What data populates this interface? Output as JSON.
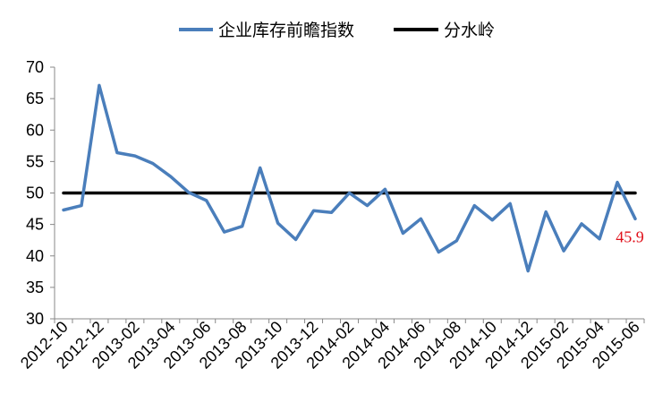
{
  "chart_data": {
    "type": "line",
    "title": "",
    "xlabel": "",
    "ylabel": "",
    "ylim": [
      30,
      70
    ],
    "yticks": [
      "30",
      "35",
      "40",
      "45",
      "50",
      "55",
      "60",
      "65",
      "70"
    ],
    "xtick_labels": [
      "2012-10",
      "2012-12",
      "2013-02",
      "2013-04",
      "2013-06",
      "2013-08",
      "2013-10",
      "2013-12",
      "2014-02",
      "2014-04",
      "2014-06",
      "2014-08",
      "2014-10",
      "2014-12",
      "2015-02",
      "2015-04",
      "2015-06"
    ],
    "x": [
      "2012-10",
      "2012-11",
      "2012-12",
      "2013-01",
      "2013-02",
      "2013-03",
      "2013-04",
      "2013-05",
      "2013-06",
      "2013-07",
      "2013-08",
      "2013-09",
      "2013-10",
      "2013-11",
      "2013-12",
      "2014-01",
      "2014-02",
      "2014-03",
      "2014-04",
      "2014-05",
      "2014-06",
      "2014-07",
      "2014-08",
      "2014-09",
      "2014-10",
      "2014-11",
      "2014-12",
      "2015-01",
      "2015-02",
      "2015-03",
      "2015-04",
      "2015-05",
      "2015-06"
    ],
    "series": [
      {
        "name": "企业库存前瞻指数",
        "color": "#4a7ebb",
        "values": [
          47.3,
          48.0,
          67.1,
          56.4,
          55.9,
          54.7,
          52.6,
          50.1,
          48.8,
          43.8,
          44.7,
          54.0,
          45.2,
          42.6,
          47.2,
          46.9,
          50.0,
          48.0,
          50.6,
          43.6,
          45.9,
          40.6,
          42.4,
          48.0,
          45.7,
          48.3,
          37.6,
          47.0,
          40.8,
          45.1,
          42.7,
          51.7,
          45.9
        ]
      },
      {
        "name": "分水岭",
        "color": "#000000",
        "values": [
          50,
          50,
          50,
          50,
          50,
          50,
          50,
          50,
          50,
          50,
          50,
          50,
          50,
          50,
          50,
          50,
          50,
          50,
          50,
          50,
          50,
          50,
          50,
          50,
          50,
          50,
          50,
          50,
          50,
          50,
          50,
          50,
          50
        ]
      }
    ],
    "annotations": [
      {
        "text": "45.9",
        "x": "2015-06",
        "y": 45.9,
        "color": "#e0101a"
      }
    ],
    "legend": {
      "position": "top"
    },
    "grid": false
  }
}
